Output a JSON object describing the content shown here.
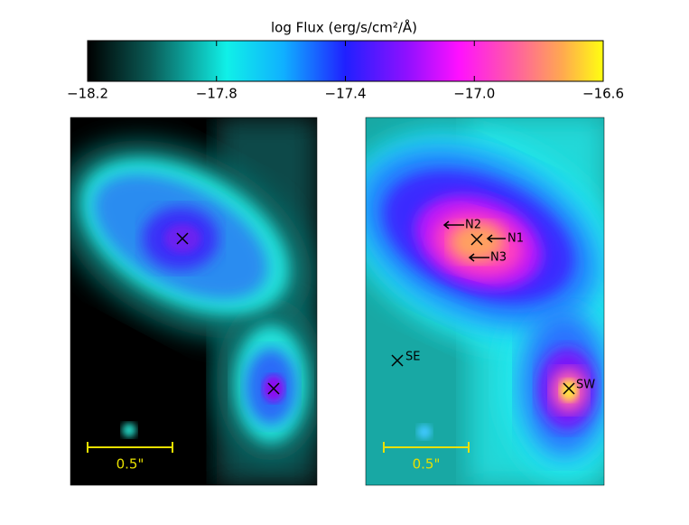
{
  "chart_data": {
    "type": "image",
    "title": "log Flux (erg/s/cm²/Å)",
    "colorbar": {
      "lim": [
        -18.2,
        -16.6
      ],
      "ticks": [
        {
          "value": -18.2,
          "label": "−18.2"
        },
        {
          "value": -17.8,
          "label": "−17.8"
        },
        {
          "value": -17.4,
          "label": "−17.4"
        },
        {
          "value": -17.0,
          "label": "−17.0"
        },
        {
          "value": -16.6,
          "label": "−16.6"
        }
      ]
    }
  },
  "panels": [
    {
      "scale_bar_label": "0.5\""
    },
    {
      "scale_bar_label": "0.5\"",
      "labels": [
        "N2",
        "N1",
        "N3",
        "SE",
        "SW"
      ]
    }
  ]
}
